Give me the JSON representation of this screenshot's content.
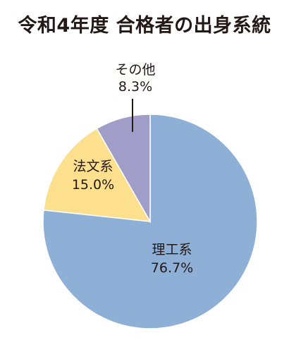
{
  "chart_data": {
    "type": "pie",
    "title": "令和4年度 合格者の出身系統",
    "slices": [
      {
        "label": "理工系",
        "value": 76.7,
        "value_text": "76.7%",
        "color": "#8eb0d6"
      },
      {
        "label": "法文系",
        "value": 15.0,
        "value_text": "15.0%",
        "color": "#fce08d"
      },
      {
        "label": "その他",
        "value": 8.3,
        "value_text": "8.3%",
        "color": "#a09dc9"
      }
    ],
    "start": "12 o'clock",
    "direction": "clockwise",
    "legend": "none",
    "labels": "inside slices; small slice labeled outside with leader line"
  }
}
